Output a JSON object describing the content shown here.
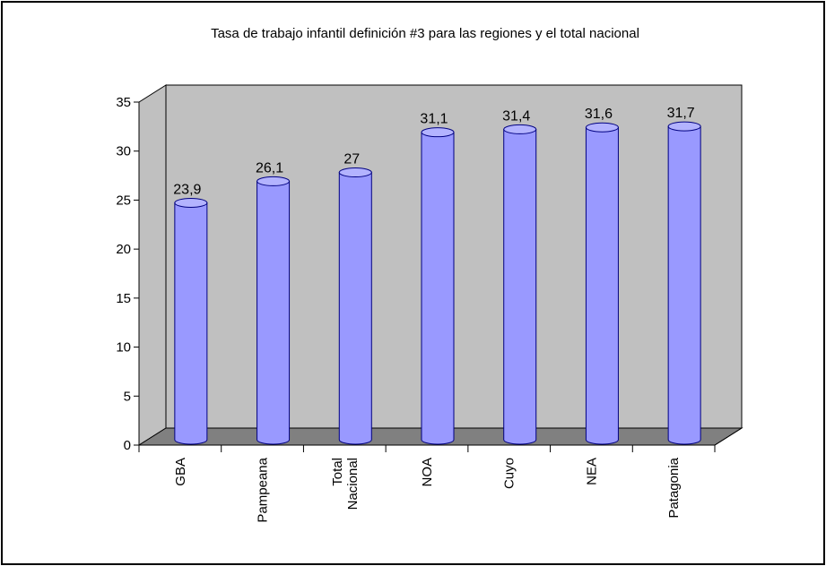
{
  "chart_data": {
    "type": "bar",
    "title": "Tasa de trabajo infantil definición #3 para las regiones y el total nacional",
    "categories": [
      "GBA",
      "Pampeana",
      "Total Nacional",
      "NOA",
      "Cuyo",
      "NEA",
      "Patagonia"
    ],
    "category_lines": [
      [
        "GBA"
      ],
      [
        "Pampeana"
      ],
      [
        "Total",
        "Nacional"
      ],
      [
        "NOA"
      ],
      [
        "Cuyo"
      ],
      [
        "NEA"
      ],
      [
        "Patagonia"
      ]
    ],
    "values": [
      23.9,
      26.1,
      27,
      31.1,
      31.4,
      31.6,
      31.7
    ],
    "value_labels": [
      "23,9",
      "26,1",
      "27",
      "31,1",
      "31,4",
      "31,6",
      "31,7"
    ],
    "y_ticks": [
      "0",
      "5",
      "10",
      "15",
      "20",
      "25",
      "30",
      "35"
    ],
    "ylim": [
      0,
      35
    ],
    "xlabel": "",
    "ylabel": "",
    "grid": false,
    "legend": "none",
    "colors": {
      "bar_fill": "#9999ff",
      "bar_top": "#b3b3ff",
      "bar_edge": "#000080",
      "wall": "#c0c0c0",
      "floor": "#808080"
    }
  }
}
